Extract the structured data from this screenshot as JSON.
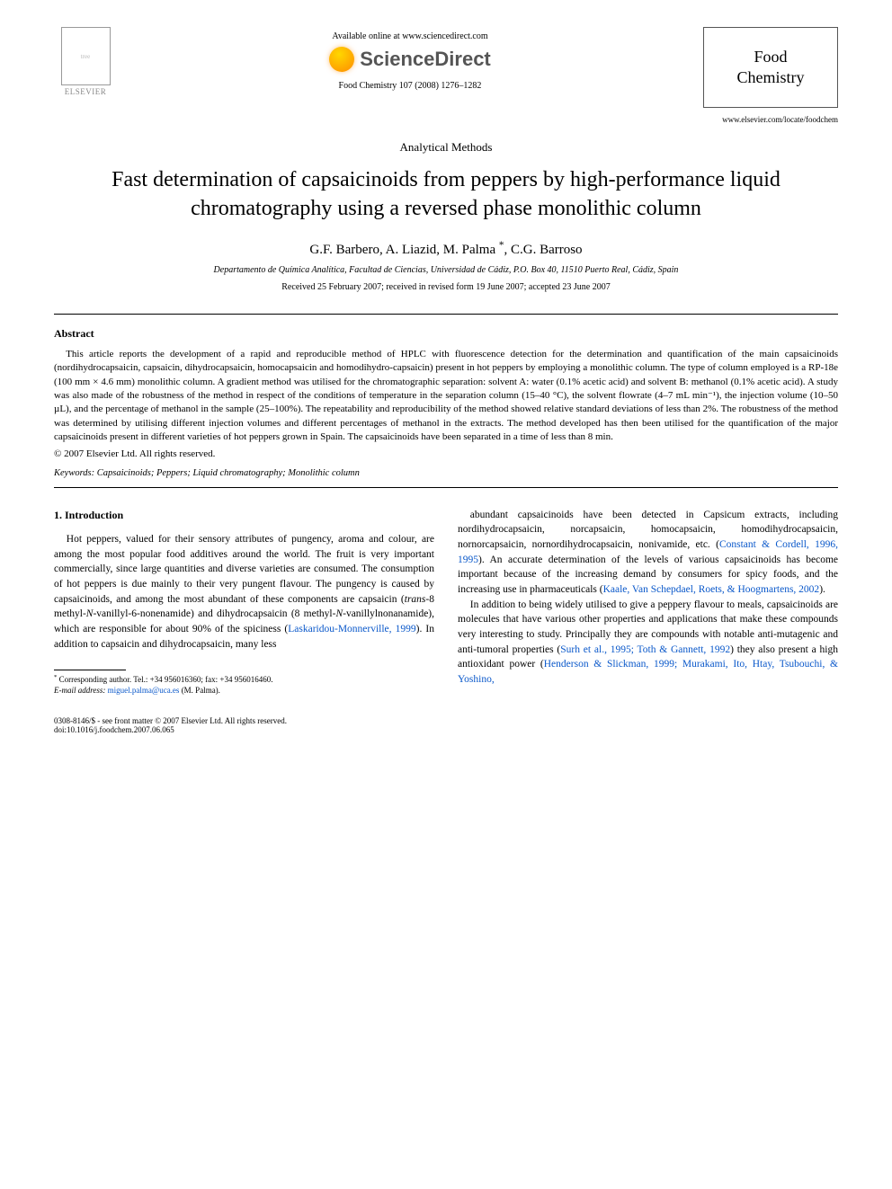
{
  "header": {
    "elsevier_label": "ELSEVIER",
    "available_text": "Available online at www.sciencedirect.com",
    "sciencedirect_text": "ScienceDirect",
    "citation": "Food Chemistry 107 (2008) 1276–1282",
    "journal_title_line1": "Food",
    "journal_title_line2": "Chemistry",
    "journal_url": "www.elsevier.com/locate/foodchem"
  },
  "article": {
    "section_label": "Analytical Methods",
    "title": "Fast determination of capsaicinoids from peppers by high-performance liquid chromatography using a reversed phase monolithic column",
    "authors_html": "G.F. Barbero, A. Liazid, M. Palma <span class='sup'>*</span>, C.G. Barroso",
    "affiliation": "Departamento de Química Analítica, Facultad de Ciencias, Universidad de Cádiz, P.O. Box 40, 11510 Puerto Real, Cádiz, Spain",
    "dates": "Received 25 February 2007; received in revised form 19 June 2007; accepted 23 June 2007"
  },
  "abstract": {
    "heading": "Abstract",
    "body": "This article reports the development of a rapid and reproducible method of HPLC with fluorescence detection for the determination and quantification of the main capsaicinoids (nordihydrocapsaicin, capsaicin, dihydrocapsaicin, homocapsaicin and homodihydro-capsaicin) present in hot peppers by employing a monolithic column. The type of column employed is a RP-18e (100 mm × 4.6 mm) monolithic column. A gradient method was utilised for the chromatographic separation: solvent A: water (0.1% acetic acid) and solvent B: methanol (0.1% acetic acid). A study was also made of the robustness of the method in respect of the conditions of temperature in the separation column (15–40 °C), the solvent flowrate (4–7 mL min⁻¹), the injection volume (10–50 µL), and the percentage of methanol in the sample (25–100%). The repeatability and reproducibility of the method showed relative standard deviations of less than 2%. The robustness of the method was determined by utilising different injection volumes and different percentages of methanol in the extracts. The method developed has then been utilised for the quantification of the major capsaicinoids present in different varieties of hot peppers grown in Spain. The capsaicinoids have been separated in a time of less than 8 min.",
    "copyright": "© 2007 Elsevier Ltd. All rights reserved."
  },
  "keywords": {
    "label": "Keywords:",
    "list": "Capsaicinoids; Peppers; Liquid chromatography; Monolithic column"
  },
  "body": {
    "intro_heading": "1. Introduction",
    "col1_p1": "Hot peppers, valued for their sensory attributes of pungency, aroma and colour, are among the most popular food additives around the world. The fruit is very important commercially, since large quantities and diverse varieties are consumed. The consumption of hot peppers is due mainly to their very pungent flavour. The pungency is caused by capsaicinoids, and among the most abundant of these components are capsaicin (<span class='ital'>trans</span>-8 methyl-<span class='ital'>N</span>-vanillyl-6-nonenamide) and dihydrocapsaicin (8 methyl-<span class='ital'>N</span>-vanillylnonanamide), which are responsible for about 90% of the spiciness (<span class='link'>Laskaridou-Monnerville, 1999</span>). In addition to capsaicin and dihydrocapsaicin, many less",
    "col2_p1": "abundant capsaicinoids have been detected in Capsicum extracts, including nordihydrocapsaicin, norcapsaicin, homocapsaicin, homodihydrocapsaicin, nornorcapsaicin, nornordihydrocapsaicin, nonivamide, etc. (<span class='link'>Constant & Cordell, 1996, 1995</span>). An accurate determination of the levels of various capsaicinoids has become important because of the increasing demand by consumers for spicy foods, and the increasing use in pharmaceuticals (<span class='link'>Kaale, Van Schepdael, Roets, & Hoogmartens, 2002</span>).",
    "col2_p2": "In addition to being widely utilised to give a peppery flavour to meals, capsaicinoids are molecules that have various other properties and applications that make these compounds very interesting to study. Principally they are compounds with notable anti-mutagenic and anti-tumoral properties (<span class='link'>Surh et al., 1995; Toth & Gannett, 1992</span>) they also present a high antioxidant power (<span class='link'>Henderson & Slickman, 1999; Murakami, Ito, Htay, Tsubouchi, & Yoshino,</span>"
  },
  "footnote": {
    "corr": "Corresponding author. Tel.: +34 956016360; fax: +34 956016460.",
    "email_label": "E-mail address:",
    "email": "miguel.palma@uca.es",
    "email_owner": "(M. Palma)."
  },
  "footer": {
    "left_line1": "0308-8146/$ - see front matter © 2007 Elsevier Ltd. All rights reserved.",
    "left_line2": "doi:10.1016/j.foodchem.2007.06.065"
  },
  "colors": {
    "link": "#0a58ca",
    "text": "#000000",
    "background": "#ffffff"
  }
}
